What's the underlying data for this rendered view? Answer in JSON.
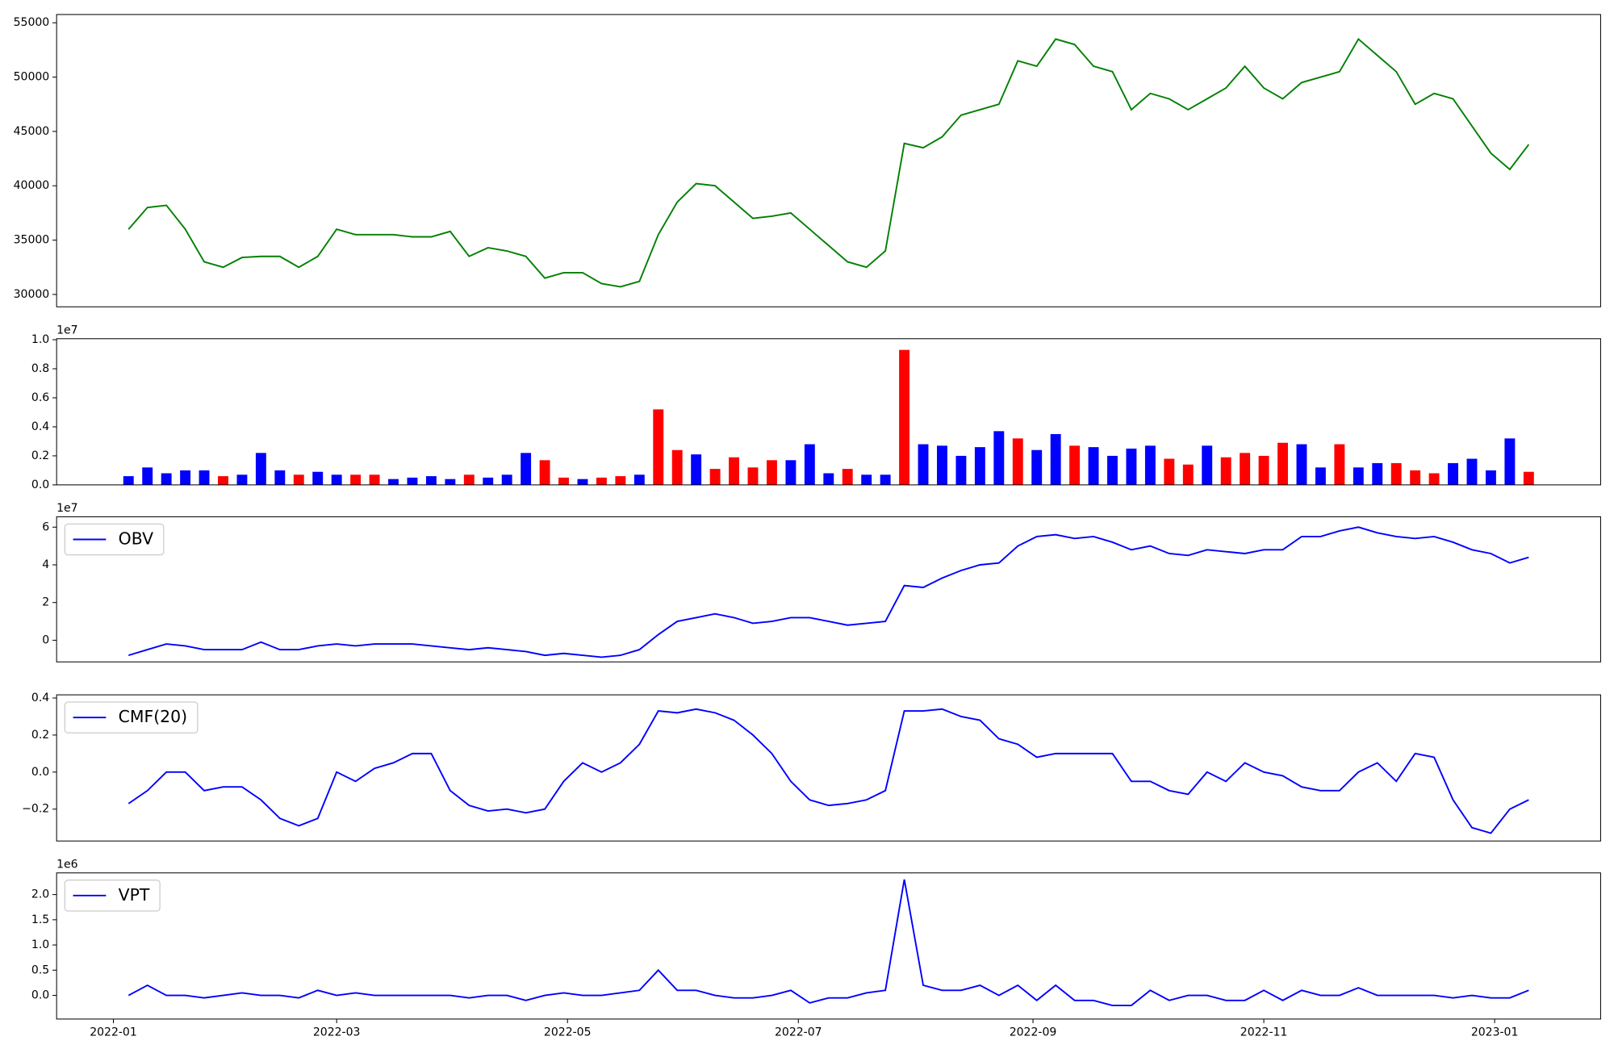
{
  "chart_data": [
    {
      "type": "line",
      "legend": "none",
      "x": [
        18997,
        19002,
        19007,
        19012,
        19017,
        19022,
        19027,
        19032,
        19037,
        19042,
        19047,
        19052,
        19057,
        19062,
        19067,
        19072,
        19077,
        19082,
        19087,
        19092,
        19097,
        19102,
        19107,
        19112,
        19117,
        19122,
        19127,
        19132,
        19137,
        19142,
        19147,
        19152,
        19157,
        19162,
        19167,
        19172,
        19177,
        19182,
        19187,
        19192,
        19197,
        19202,
        19207,
        19212,
        19217,
        19222,
        19227,
        19232,
        19237,
        19242,
        19247,
        19252,
        19257,
        19262,
        19267,
        19272,
        19277,
        19282,
        19287,
        19292,
        19297,
        19302,
        19307,
        19312,
        19317,
        19322,
        19327,
        19332,
        19337,
        19342,
        19347,
        19352,
        19357,
        19362,
        19367
      ],
      "values": [
        36000,
        38000,
        38200,
        36000,
        33000,
        32500,
        33400,
        33500,
        33500,
        32500,
        33500,
        36000,
        35500,
        35500,
        35500,
        35300,
        35300,
        35800,
        33500,
        34300,
        34000,
        33500,
        31500,
        32000,
        32000,
        31000,
        30700,
        31200,
        35500,
        38500,
        40200,
        40000,
        38500,
        37000,
        37200,
        37500,
        36000,
        34500,
        33000,
        32500,
        34000,
        43900,
        43500,
        44500,
        46500,
        47000,
        47500,
        51500,
        51000,
        53500,
        53000,
        51000,
        50500,
        47000,
        48500,
        48000,
        47000,
        48000,
        49000,
        51000,
        49000,
        48000,
        49500,
        50000,
        50500,
        53500,
        52000,
        50500,
        47500,
        48500,
        48000,
        45500,
        43000,
        41500,
        43800
      ],
      "color": "green",
      "xlim": [
        18978,
        19386
      ],
      "ylim": [
        28860,
        55760
      ],
      "yticks": [
        30000,
        35000,
        40000,
        45000,
        50000,
        55000
      ]
    },
    {
      "type": "bar",
      "legend": "none",
      "y_offset_label": "1e7",
      "x": [
        18997,
        19002,
        19007,
        19012,
        19017,
        19022,
        19027,
        19032,
        19037,
        19042,
        19047,
        19052,
        19057,
        19062,
        19067,
        19072,
        19077,
        19082,
        19087,
        19092,
        19097,
        19102,
        19107,
        19112,
        19117,
        19122,
        19127,
        19132,
        19137,
        19142,
        19147,
        19152,
        19157,
        19162,
        19167,
        19172,
        19177,
        19182,
        19187,
        19192,
        19197,
        19202,
        19207,
        19212,
        19217,
        19222,
        19227,
        19232,
        19237,
        19242,
        19247,
        19252,
        19257,
        19262,
        19267,
        19272,
        19277,
        19282,
        19287,
        19292,
        19297,
        19302,
        19307,
        19312,
        19317,
        19322,
        19327,
        19332,
        19337,
        19342,
        19347,
        19352,
        19357,
        19362,
        19367
      ],
      "values": [
        0.06,
        0.12,
        0.08,
        0.1,
        0.1,
        0.06,
        0.07,
        0.22,
        0.1,
        0.07,
        0.09,
        0.07,
        0.07,
        0.07,
        0.04,
        0.05,
        0.06,
        0.04,
        0.07,
        0.05,
        0.07,
        0.22,
        0.17,
        0.05,
        0.04,
        0.05,
        0.06,
        0.07,
        0.52,
        0.24,
        0.21,
        0.11,
        0.19,
        0.12,
        0.17,
        0.17,
        0.28,
        0.08,
        0.11,
        0.07,
        0.07,
        0.93,
        0.28,
        0.27,
        0.2,
        0.26,
        0.37,
        0.32,
        0.24,
        0.35,
        0.27,
        0.26,
        0.2,
        0.25,
        0.27,
        0.18,
        0.14,
        0.27,
        0.19,
        0.22,
        0.2,
        0.29,
        0.28,
        0.12,
        0.28,
        0.12,
        0.15,
        0.15,
        0.1,
        0.08,
        0.15,
        0.18,
        0.1,
        0.32,
        0.09
      ],
      "colors": [
        "blue",
        "blue",
        "blue",
        "blue",
        "blue",
        "red",
        "blue",
        "blue",
        "blue",
        "red",
        "blue",
        "blue",
        "red",
        "red",
        "blue",
        "blue",
        "blue",
        "blue",
        "red",
        "blue",
        "blue",
        "blue",
        "red",
        "red",
        "blue",
        "red",
        "red",
        "blue",
        "red",
        "red",
        "blue",
        "red",
        "red",
        "red",
        "red",
        "blue",
        "blue",
        "blue",
        "red",
        "blue",
        "blue",
        "red",
        "blue",
        "blue",
        "blue",
        "blue",
        "blue",
        "red",
        "blue",
        "blue",
        "red",
        "blue",
        "blue",
        "blue",
        "blue",
        "red",
        "red",
        "blue",
        "red",
        "red",
        "red",
        "red",
        "blue",
        "blue",
        "red",
        "blue",
        "blue",
        "red",
        "red",
        "red",
        "blue",
        "blue",
        "blue",
        "blue",
        "red"
      ],
      "xlim": [
        18978,
        19386
      ],
      "ylim": [
        0,
        1.007
      ],
      "yticks": [
        {
          "value": 0,
          "label": "0.0"
        },
        {
          "value": 0.2,
          "label": "0.2"
        },
        {
          "value": 0.4,
          "label": "0.4"
        },
        {
          "value": 0.6,
          "label": "0.6"
        },
        {
          "value": 0.8,
          "label": "0.8"
        },
        {
          "value": 1.0,
          "label": "1.0"
        }
      ]
    },
    {
      "type": "line",
      "legend": "upper left",
      "y_offset_label": "1e7",
      "x": [
        18997,
        19002,
        19007,
        19012,
        19017,
        19022,
        19027,
        19032,
        19037,
        19042,
        19047,
        19052,
        19057,
        19062,
        19067,
        19072,
        19077,
        19082,
        19087,
        19092,
        19097,
        19102,
        19107,
        19112,
        19117,
        19122,
        19127,
        19132,
        19137,
        19142,
        19147,
        19152,
        19157,
        19162,
        19167,
        19172,
        19177,
        19182,
        19187,
        19192,
        19197,
        19202,
        19207,
        19212,
        19217,
        19222,
        19227,
        19232,
        19237,
        19242,
        19247,
        19252,
        19257,
        19262,
        19267,
        19272,
        19277,
        19282,
        19287,
        19292,
        19297,
        19302,
        19307,
        19312,
        19317,
        19322,
        19327,
        19332,
        19337,
        19342,
        19347,
        19352,
        19357,
        19362,
        19367
      ],
      "series": [
        {
          "name": "OBV",
          "color": "blue",
          "values": [
            -0.8,
            -0.5,
            -0.2,
            -0.3,
            -0.5,
            -0.5,
            -0.5,
            -0.1,
            -0.5,
            -0.5,
            -0.3,
            -0.2,
            -0.3,
            -0.2,
            -0.2,
            -0.2,
            -0.3,
            -0.4,
            -0.5,
            -0.4,
            -0.5,
            -0.6,
            -0.8,
            -0.7,
            -0.8,
            -0.9,
            -0.8,
            -0.5,
            0.3,
            1.0,
            1.2,
            1.4,
            1.2,
            0.9,
            1.0,
            1.2,
            1.2,
            1.0,
            0.8,
            0.9,
            1.0,
            2.9,
            2.8,
            3.3,
            3.7,
            4.0,
            4.1,
            5.0,
            5.5,
            5.6,
            5.4,
            5.5,
            5.2,
            4.8,
            5.0,
            4.6,
            4.5,
            4.8,
            4.7,
            4.6,
            4.8,
            4.8,
            5.5,
            5.5,
            5.8,
            6.0,
            5.7,
            5.5,
            5.4,
            5.5,
            5.2,
            4.8,
            4.6,
            4.1,
            4.4
          ]
        }
      ],
      "xlim": [
        18978,
        19386
      ],
      "ylim": [
        -1.15,
        6.55
      ],
      "yticks": [
        0,
        2,
        4,
        6
      ]
    },
    {
      "type": "line",
      "legend": "upper left",
      "x": [
        18997,
        19002,
        19007,
        19012,
        19017,
        19022,
        19027,
        19032,
        19037,
        19042,
        19047,
        19052,
        19057,
        19062,
        19067,
        19072,
        19077,
        19082,
        19087,
        19092,
        19097,
        19102,
        19107,
        19112,
        19117,
        19122,
        19127,
        19132,
        19137,
        19142,
        19147,
        19152,
        19157,
        19162,
        19167,
        19172,
        19177,
        19182,
        19187,
        19192,
        19197,
        19202,
        19207,
        19212,
        19217,
        19222,
        19227,
        19232,
        19237,
        19242,
        19247,
        19252,
        19257,
        19262,
        19267,
        19272,
        19277,
        19282,
        19287,
        19292,
        19297,
        19302,
        19307,
        19312,
        19317,
        19322,
        19327,
        19332,
        19337,
        19342,
        19347,
        19352,
        19357,
        19362,
        19367
      ],
      "series": [
        {
          "name": "CMF(20)",
          "color": "blue",
          "values": [
            -0.17,
            -0.1,
            0.0,
            0.0,
            -0.1,
            -0.08,
            -0.08,
            -0.15,
            -0.25,
            -0.29,
            -0.25,
            0.0,
            -0.05,
            0.02,
            0.05,
            0.1,
            0.1,
            -0.1,
            -0.18,
            -0.21,
            -0.2,
            -0.22,
            -0.2,
            -0.05,
            0.05,
            0.0,
            0.05,
            0.15,
            0.33,
            0.32,
            0.34,
            0.32,
            0.28,
            0.2,
            0.1,
            -0.05,
            -0.15,
            -0.18,
            -0.17,
            -0.15,
            -0.1,
            0.33,
            0.33,
            0.34,
            0.3,
            0.28,
            0.18,
            0.15,
            0.08,
            0.1,
            0.1,
            0.1,
            0.1,
            -0.05,
            -0.05,
            -0.1,
            -0.12,
            0.0,
            -0.05,
            0.05,
            0.0,
            -0.02,
            -0.08,
            -0.1,
            -0.1,
            0.0,
            0.05,
            -0.05,
            0.1,
            0.08,
            -0.15,
            -0.3,
            -0.33,
            -0.2,
            -0.15
          ]
        }
      ],
      "xlim": [
        18978,
        19386
      ],
      "ylim": [
        -0.372,
        0.417
      ],
      "yticks": [
        {
          "value": -0.2,
          "label": "−0.2"
        },
        {
          "value": 0,
          "label": "0.0"
        },
        {
          "value": 0.2,
          "label": "0.2"
        },
        {
          "value": 0.4,
          "label": "0.4"
        }
      ]
    },
    {
      "type": "line",
      "legend": "upper left",
      "y_offset_label": "1e6",
      "x": [
        18997,
        19002,
        19007,
        19012,
        19017,
        19022,
        19027,
        19032,
        19037,
        19042,
        19047,
        19052,
        19057,
        19062,
        19067,
        19072,
        19077,
        19082,
        19087,
        19092,
        19097,
        19102,
        19107,
        19112,
        19117,
        19122,
        19127,
        19132,
        19137,
        19142,
        19147,
        19152,
        19157,
        19162,
        19167,
        19172,
        19177,
        19182,
        19187,
        19192,
        19197,
        19202,
        19207,
        19212,
        19217,
        19222,
        19227,
        19232,
        19237,
        19242,
        19247,
        19252,
        19257,
        19262,
        19267,
        19272,
        19277,
        19282,
        19287,
        19292,
        19297,
        19302,
        19307,
        19312,
        19317,
        19322,
        19327,
        19332,
        19337,
        19342,
        19347,
        19352,
        19357,
        19362,
        19367
      ],
      "series": [
        {
          "name": "VPT",
          "color": "blue",
          "values": [
            0.0,
            0.2,
            0.0,
            0.0,
            -0.05,
            0.0,
            0.05,
            0.0,
            0.0,
            -0.05,
            0.1,
            0.0,
            0.05,
            0.0,
            0.0,
            0.0,
            0.0,
            0.0,
            -0.05,
            0.0,
            0.0,
            -0.1,
            0.0,
            0.05,
            0.0,
            0.0,
            0.05,
            0.1,
            0.5,
            0.1,
            0.1,
            0.0,
            -0.05,
            -0.05,
            0.0,
            0.1,
            -0.15,
            -0.05,
            -0.05,
            0.05,
            0.1,
            2.3,
            0.2,
            0.1,
            0.1,
            0.2,
            0.0,
            0.2,
            -0.1,
            0.2,
            -0.1,
            -0.1,
            -0.2,
            -0.2,
            0.1,
            -0.1,
            0.0,
            0.0,
            -0.1,
            -0.1,
            0.1,
            -0.1,
            0.1,
            0.0,
            0.0,
            0.15,
            0.0,
            0.0,
            0.0,
            0.0,
            -0.05,
            0.0,
            -0.05,
            -0.05,
            0.1
          ]
        }
      ],
      "xlim": [
        18978,
        19386
      ],
      "ylim": [
        -0.47,
        2.43
      ],
      "yticks": [
        {
          "value": 0,
          "label": "0.0"
        },
        {
          "value": 0.5,
          "label": "0.5"
        },
        {
          "value": 1.0,
          "label": "1.0"
        },
        {
          "value": 1.5,
          "label": "1.5"
        },
        {
          "value": 2.0,
          "label": "2.0"
        }
      ],
      "xticks": [
        {
          "value": 18993,
          "label": "2022-01"
        },
        {
          "value": 19052,
          "label": "2022-03"
        },
        {
          "value": 19113,
          "label": "2022-05"
        },
        {
          "value": 19174,
          "label": "2022-07"
        },
        {
          "value": 19236,
          "label": "2022-09"
        },
        {
          "value": 19297,
          "label": "2022-11"
        },
        {
          "value": 19358,
          "label": "2023-01"
        }
      ]
    }
  ]
}
